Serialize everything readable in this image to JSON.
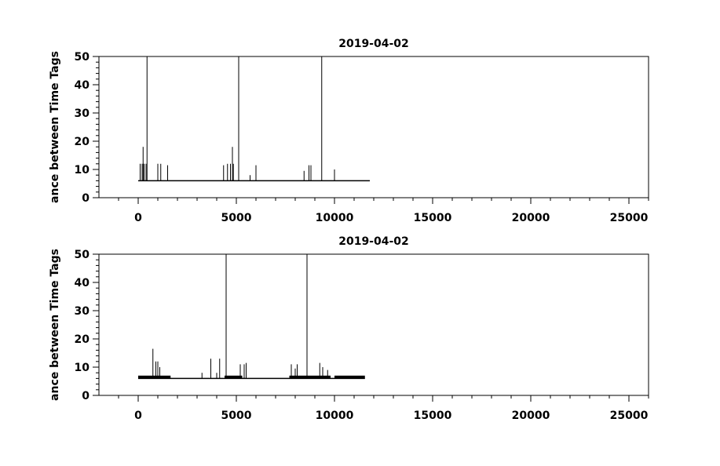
{
  "chart_data": [
    {
      "type": "line",
      "title": "2019-04-02",
      "xlabel": "",
      "ylabel": "ance between Time Tags",
      "xlim": [
        -2000,
        26000
      ],
      "ylim": [
        0,
        50
      ],
      "x_ticks": [
        0,
        5000,
        10000,
        15000,
        20000,
        25000
      ],
      "x_tick_labels": [
        "0",
        "5000",
        "10000",
        "15000",
        "20000",
        "25000"
      ],
      "y_ticks": [
        0,
        10,
        20,
        30,
        40,
        50
      ],
      "y_tick_labels": [
        "0",
        "10",
        "20",
        "30",
        "40",
        "50"
      ],
      "grid": false,
      "baseline": 6,
      "x_range": [
        0,
        11800
      ],
      "bands": [],
      "spikes": [
        {
          "x": 100,
          "y": 12
        },
        {
          "x": 200,
          "y": 12
        },
        {
          "x": 250,
          "y": 18
        },
        {
          "x": 300,
          "y": 12
        },
        {
          "x": 400,
          "y": 12
        },
        {
          "x": 450,
          "y": 50
        },
        {
          "x": 1000,
          "y": 12
        },
        {
          "x": 1150,
          "y": 12
        },
        {
          "x": 1500,
          "y": 11.5
        },
        {
          "x": 4350,
          "y": 11.5
        },
        {
          "x": 4550,
          "y": 12
        },
        {
          "x": 4700,
          "y": 12
        },
        {
          "x": 4800,
          "y": 18
        },
        {
          "x": 4850,
          "y": 12
        },
        {
          "x": 5120,
          "y": 50
        },
        {
          "x": 5700,
          "y": 8
        },
        {
          "x": 6000,
          "y": 11.5
        },
        {
          "x": 8450,
          "y": 9.5
        },
        {
          "x": 8700,
          "y": 11.5
        },
        {
          "x": 8800,
          "y": 11.5
        },
        {
          "x": 9350,
          "y": 50
        },
        {
          "x": 10000,
          "y": 10
        }
      ]
    },
    {
      "type": "line",
      "title": "2019-04-02",
      "xlabel": "",
      "ylabel": "ance between Time Tags",
      "xlim": [
        -2000,
        26000
      ],
      "ylim": [
        0,
        50
      ],
      "x_ticks": [
        0,
        5000,
        10000,
        15000,
        20000,
        25000
      ],
      "x_tick_labels": [
        "0",
        "5000",
        "10000",
        "15000",
        "20000",
        "25000"
      ],
      "y_ticks": [
        0,
        10,
        20,
        30,
        40,
        50
      ],
      "y_tick_labels": [
        "0",
        "10",
        "20",
        "30",
        "40",
        "50"
      ],
      "grid": false,
      "baseline": 6,
      "x_range": [
        0,
        11550
      ],
      "bands": [
        {
          "x0": 0,
          "x1": 1650,
          "y0": 6,
          "y1": 7
        },
        {
          "x0": 4400,
          "y1": 7,
          "x1": 5300,
          "y0": 6
        },
        {
          "x0": 7700,
          "x1": 9800,
          "y0": 6,
          "y1": 7
        },
        {
          "x0": 10000,
          "x1": 11550,
          "y0": 6,
          "y1": 7
        }
      ],
      "spikes": [
        {
          "x": 750,
          "y": 16.5
        },
        {
          "x": 900,
          "y": 12
        },
        {
          "x": 1000,
          "y": 12
        },
        {
          "x": 1100,
          "y": 10
        },
        {
          "x": 3250,
          "y": 8
        },
        {
          "x": 3700,
          "y": 13
        },
        {
          "x": 4000,
          "y": 8
        },
        {
          "x": 4150,
          "y": 13
        },
        {
          "x": 4480,
          "y": 50
        },
        {
          "x": 5200,
          "y": 11
        },
        {
          "x": 5400,
          "y": 11
        },
        {
          "x": 5500,
          "y": 11.5
        },
        {
          "x": 7800,
          "y": 11
        },
        {
          "x": 8000,
          "y": 9.5
        },
        {
          "x": 8100,
          "y": 11
        },
        {
          "x": 8600,
          "y": 50
        },
        {
          "x": 9250,
          "y": 11.5
        },
        {
          "x": 9400,
          "y": 10
        },
        {
          "x": 9650,
          "y": 9
        }
      ]
    }
  ]
}
